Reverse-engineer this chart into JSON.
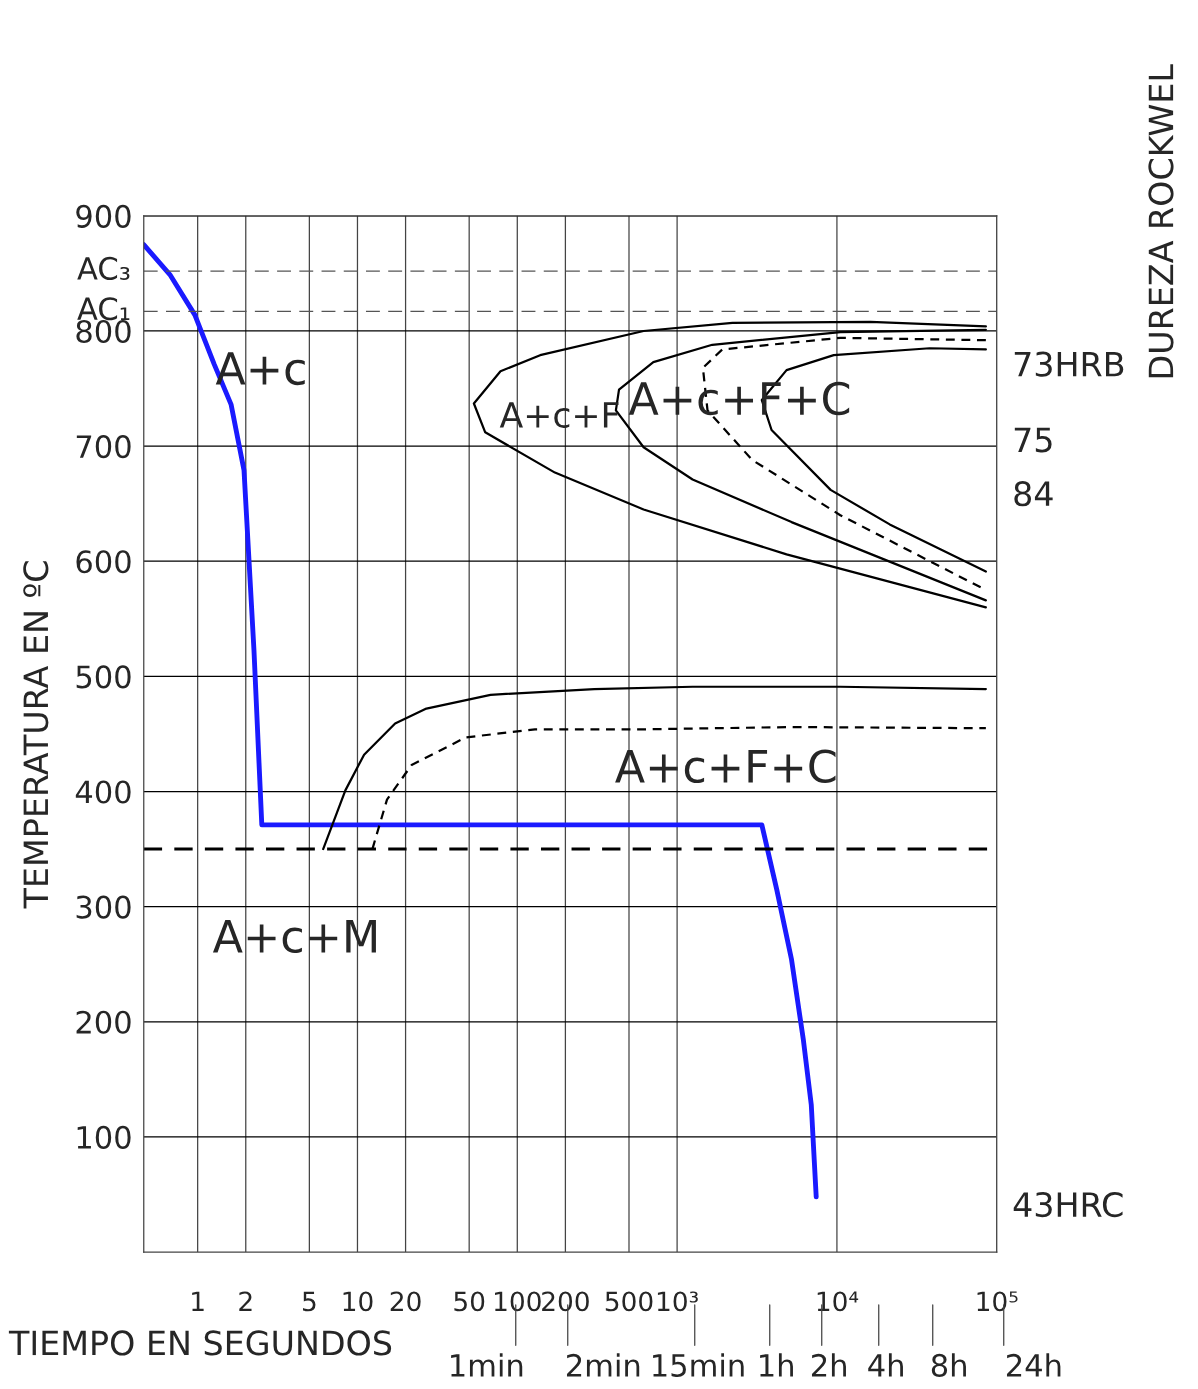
{
  "chart_data": {
    "type": "line",
    "xlabel": "TIEMPO EN SEGUNDOS",
    "ylabel": "TEMPERATURA EN ºC",
    "y2label": "DUREZA ROCKWEL",
    "log": "x",
    "xlim": [
      0.46,
      100000
    ],
    "ylim": [
      0,
      900
    ],
    "xticks": [
      1,
      2,
      5,
      10,
      20,
      50,
      100,
      200,
      500,
      {
        "value": 1000,
        "label": "10³"
      },
      {
        "value": 10000,
        "label": "10⁴"
      },
      {
        "value": 100000,
        "label": "10⁵"
      }
    ],
    "yticks": [
      100,
      200,
      300,
      400,
      500,
      600,
      700,
      800,
      900
    ],
    "grid": true,
    "marker": "none",
    "series": [
      {
        "color": "#1a1aff",
        "line_style": "solid",
        "x": [
          0.46,
          0.67,
          0.96,
          1.27,
          1.62,
          1.95,
          2.25,
          2.52,
          3390,
          4200,
          5200,
          6170,
          6910,
          7420
        ],
        "values": [
          875,
          849,
          814,
          771,
          736,
          679,
          523,
          371,
          371,
          315,
          254,
          184,
          128,
          48
        ]
      },
      {
        "color": "#000000",
        "line_style": "solid",
        "x": [
          6.1,
          8.4,
          11.0,
          17.2,
          27,
          68,
          303,
          1250,
          10500,
          85500
        ],
        "values": [
          350,
          401,
          432,
          459,
          472,
          484,
          489,
          491,
          491,
          489
        ]
      },
      {
        "color": "#000000",
        "line_style": "dashed",
        "x": [
          12.4,
          15.3,
          21.8,
          47.6,
          129,
          617,
          5200,
          85500
        ],
        "values": [
          350,
          393,
          423,
          447,
          454,
          454,
          456,
          455
        ]
      },
      {
        "color": "#000000",
        "line_style": "solid",
        "x": [
          85500,
          16200,
          2220,
          617,
          139,
          78.5,
          53.5,
          63,
          172,
          617,
          4840,
          85500
        ],
        "values": [
          804,
          808,
          807,
          800,
          779,
          765,
          737,
          712,
          677,
          645,
          606,
          560
        ]
      },
      {
        "color": "#000000",
        "line_style": "solid",
        "x": [
          85500,
          10500,
          1660,
          710,
          433,
          414,
          617,
          1250,
          5200,
          85500
        ],
        "values": [
          801,
          799,
          788,
          773,
          749,
          731,
          699,
          671,
          634,
          566
        ]
      },
      {
        "color": "#000000",
        "line_style": "dashed",
        "x": [
          85500,
          10500,
          1920,
          1450,
          1550,
          2950,
          10500,
          85500
        ],
        "values": [
          792,
          794,
          784,
          768,
          731,
          688,
          640,
          575
        ]
      },
      {
        "color": "#000000",
        "line_style": "solid",
        "x": [
          85500,
          38000,
          9550,
          4840,
          3390,
          3900,
          9130,
          21400,
          85500
        ],
        "values": [
          784,
          785,
          779,
          766,
          740,
          714,
          662,
          632,
          591
        ]
      }
    ],
    "ref_lines": [
      {
        "axis": "y",
        "value": 852,
        "label": "AC₃",
        "color": "#555555",
        "line_style": "dashed"
      },
      {
        "axis": "y",
        "value": 817,
        "label": "AC₁",
        "color": "#555555",
        "line_style": "dashed"
      },
      {
        "axis": "y",
        "value": 350,
        "color": "#000000",
        "line_style": "dashed"
      }
    ],
    "annotations": [
      "A+c",
      "A+c+F",
      "A+c+F+C",
      "A+c+F+C",
      "A+c+M",
      "73HRB",
      "75",
      "84",
      "43HRC",
      "1min",
      "2min",
      "15min",
      "1h",
      "2h",
      "4h",
      "8h",
      "24h"
    ]
  }
}
